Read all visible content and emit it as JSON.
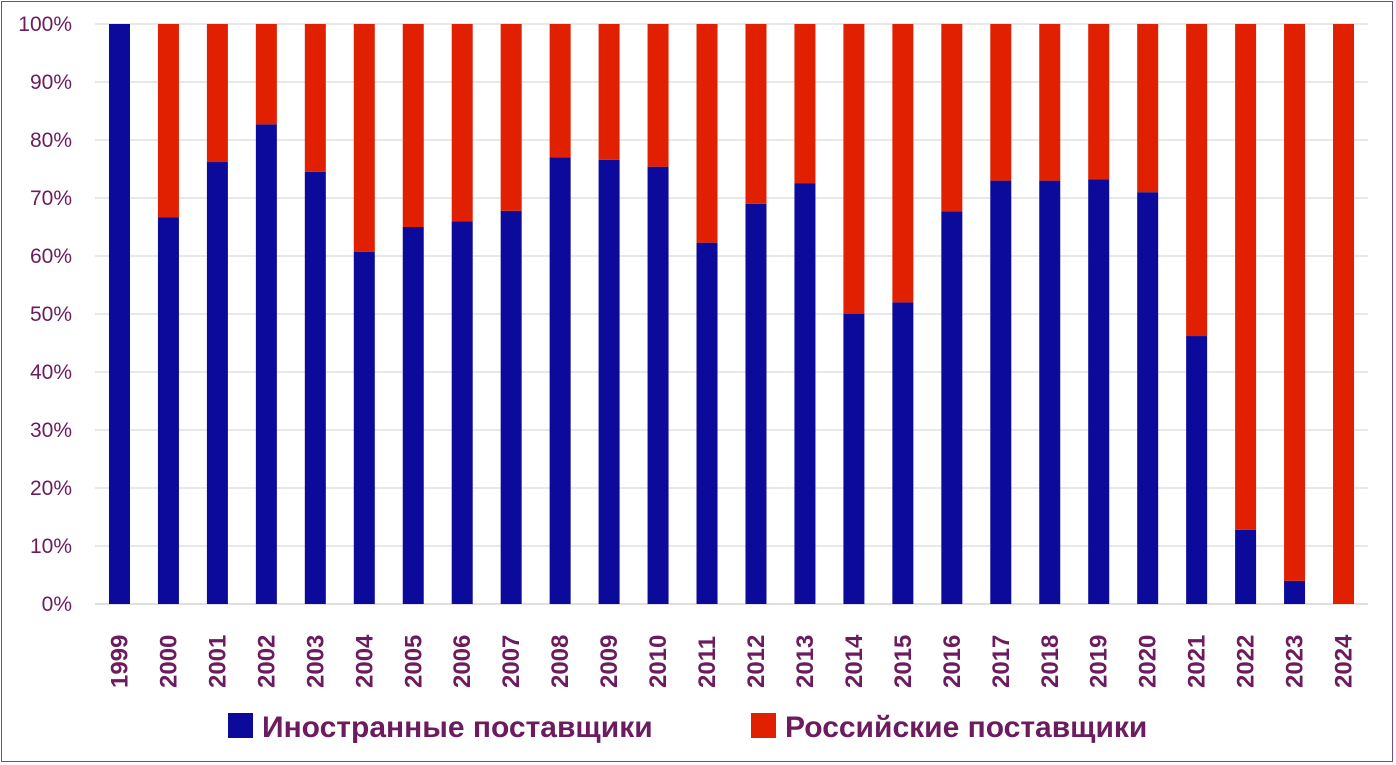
{
  "chart_data": {
    "type": "bar",
    "stacked": true,
    "percent": true,
    "categories": [
      "1999",
      "2000",
      "2001",
      "2002",
      "2003",
      "2004",
      "2005",
      "2006",
      "2007",
      "2008",
      "2009",
      "2010",
      "2011",
      "2012",
      "2013",
      "2014",
      "2015",
      "2016",
      "2017",
      "2018",
      "2019",
      "2020",
      "2021",
      "2022",
      "2023",
      "2024"
    ],
    "series": [
      {
        "name": "Иностранные поставщики",
        "color": "#0b0a9a",
        "values": [
          100,
          66.7,
          76.2,
          82.7,
          74.5,
          60.7,
          65.0,
          66.0,
          67.8,
          77.0,
          76.6,
          75.4,
          62.3,
          69.0,
          72.5,
          50.0,
          52.0,
          67.7,
          73.0,
          73.0,
          73.2,
          71.0,
          46.2,
          12.8,
          4.0,
          0
        ]
      },
      {
        "name": "Российские поставщики",
        "color": "#e02000",
        "values": [
          0,
          33.3,
          23.8,
          17.3,
          25.5,
          39.3,
          35.0,
          34.0,
          32.2,
          23.0,
          23.4,
          24.6,
          37.7,
          31.0,
          27.5,
          50.0,
          48.0,
          32.3,
          27.0,
          27.0,
          26.8,
          29.0,
          53.8,
          87.2,
          96.0,
          100
        ]
      }
    ],
    "y_ticks": [
      "0%",
      "10%",
      "20%",
      "30%",
      "40%",
      "50%",
      "60%",
      "70%",
      "80%",
      "90%",
      "100%"
    ],
    "ylim": [
      0,
      100
    ],
    "grid": true,
    "legend_position": "bottom"
  }
}
